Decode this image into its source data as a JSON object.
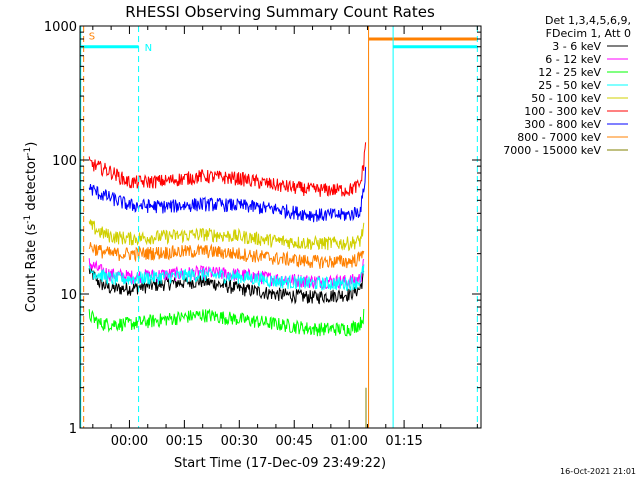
{
  "chart_data": {
    "type": "line",
    "title": "RHESSI Observing Summary Count Rates",
    "xlabel": "Start Time (17-Dec-09 23:49:22)",
    "ylabel_main": "Count Rate (s",
    "ylabel_sup1": "-1",
    "ylabel_mid": " detector",
    "ylabel_sup2": "-1",
    "ylabel_end": ")",
    "y_scale": "log",
    "ylim": [
      1,
      1000
    ],
    "xlim_minutes": [
      -13.5,
      96
    ],
    "x_ticks": [
      {
        "minutes": 0,
        "label": "00:00"
      },
      {
        "minutes": 15,
        "label": "00:15"
      },
      {
        "minutes": 30,
        "label": "00:30"
      },
      {
        "minutes": 45,
        "label": "00:45"
      },
      {
        "minutes": 60,
        "label": "01:00"
      },
      {
        "minutes": 75,
        "label": "01:15"
      }
    ],
    "y_ticks": [
      {
        "value": 1,
        "label": "1"
      },
      {
        "value": 10,
        "label": "10"
      },
      {
        "value": 100,
        "label": "100"
      },
      {
        "value": 1000,
        "label": "1000"
      }
    ],
    "legend": {
      "placement": "right",
      "header": [
        "Det 1,3,4,5,6,9,",
        "FDecim 1, Att 0"
      ]
    },
    "series": [
      {
        "name": "3 - 6 keV",
        "color": "#000000",
        "x": [
          -11,
          -8,
          -5,
          0,
          10,
          20,
          30,
          40,
          50,
          60,
          63,
          64
        ],
        "values": [
          15,
          12,
          11,
          11,
          12,
          12.5,
          11,
          10,
          9.5,
          10,
          11,
          14
        ]
      },
      {
        "name": "6 - 12 keV",
        "color": "#ff00ff",
        "x": [
          -11,
          -8,
          -5,
          0,
          10,
          20,
          30,
          40,
          50,
          60,
          63,
          64
        ],
        "values": [
          17,
          15,
          14,
          13.5,
          14,
          14.5,
          14,
          13,
          12.5,
          12.5,
          13,
          17
        ]
      },
      {
        "name": "12 - 25 keV",
        "color": "#00ff00",
        "x": [
          -11,
          -8,
          -5,
          0,
          10,
          20,
          30,
          40,
          50,
          60,
          63,
          64
        ],
        "values": [
          7,
          6,
          6,
          6,
          6.5,
          7,
          6.5,
          6,
          5.5,
          5.5,
          6,
          7
        ]
      },
      {
        "name": "25 - 50 keV",
        "color": "#00ffff",
        "x": [
          -11,
          -8,
          -5,
          0,
          10,
          20,
          30,
          40,
          50,
          60,
          63,
          64
        ],
        "values": [
          15,
          14,
          13,
          13,
          13.5,
          14,
          13.5,
          12.5,
          12,
          12,
          12.5,
          16
        ]
      },
      {
        "name": "50 - 100 keV",
        "color": "#d0d000",
        "x": [
          -11,
          -8,
          -5,
          0,
          10,
          20,
          30,
          40,
          50,
          60,
          63,
          64
        ],
        "values": [
          33,
          29,
          27,
          26,
          27,
          28,
          27,
          25,
          24,
          24,
          25,
          32
        ]
      },
      {
        "name": "100 - 300 keV",
        "color": "#ff0000",
        "x": [
          -11,
          -8,
          -5,
          0,
          10,
          20,
          30,
          40,
          50,
          60,
          63,
          64,
          64.5
        ],
        "values": [
          95,
          88,
          82,
          68,
          70,
          76,
          73,
          65,
          60,
          60,
          65,
          95,
          140
        ]
      },
      {
        "name": "300 - 800 keV",
        "color": "#0000ff",
        "x": [
          -11,
          -8,
          -5,
          0,
          10,
          20,
          30,
          40,
          50,
          60,
          63,
          64,
          64.5
        ],
        "values": [
          62,
          56,
          52,
          46,
          45,
          47,
          46,
          43,
          39,
          39,
          42,
          60,
          85
        ]
      },
      {
        "name": "800 - 7000 keV",
        "color": "#ff8000",
        "x": [
          -11,
          -8,
          -5,
          0,
          10,
          20,
          30,
          40,
          50,
          60,
          63,
          64
        ],
        "values": [
          23,
          21,
          20,
          20,
          20.5,
          21,
          20,
          18.5,
          17.5,
          17.5,
          18.5,
          23
        ]
      },
      {
        "name": "7000 - 15000 keV",
        "color": "#808000",
        "x": [
          64.6,
          64.6
        ],
        "values": [
          1,
          2
        ]
      }
    ],
    "status_bars": [
      {
        "label": "S",
        "color": "#ff8000",
        "x_start": -13.3,
        "x_end": -13.3,
        "level": 850
      },
      {
        "label": "N",
        "color": "#00ffff",
        "x_start": -13.3,
        "x_end": 2.5,
        "level": 700
      },
      {
        "label": "",
        "color": "#ff8000",
        "x_start": 65.3,
        "x_end": 95,
        "level": 800
      },
      {
        "label": "",
        "color": "#00ffff",
        "x_start": 72,
        "x_end": 95,
        "level": 700
      }
    ],
    "vertical_markers": [
      {
        "x": -13.3,
        "color": "#00ffff",
        "style": "solid"
      },
      {
        "x": -12.5,
        "color": "#ff8000",
        "style": "dashed"
      },
      {
        "x": 2.5,
        "color": "#00ffff",
        "style": "dashed"
      },
      {
        "x": 65.3,
        "color": "#ff8000",
        "style": "solid"
      },
      {
        "x": 72,
        "color": "#00ffff",
        "style": "solid"
      },
      {
        "x": 95,
        "color": "#00ffff",
        "style": "dashed"
      }
    ],
    "footer_date": "16-Oct-2021 21:01"
  }
}
